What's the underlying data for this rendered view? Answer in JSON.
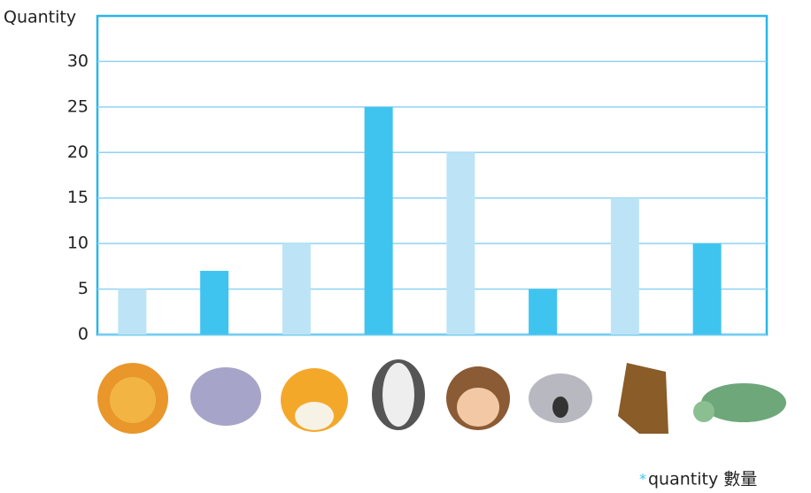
{
  "chart_data": {
    "type": "bar",
    "y_label": "Quantity",
    "categories": [
      null,
      null,
      null,
      null,
      null,
      null,
      null,
      null
    ],
    "series": [
      {
        "name": "quantity 數量",
        "values": [
          5,
          7,
          10,
          25,
          20,
          5,
          15,
          10
        ],
        "colors": [
          "#bde4f6",
          "#3fc4ef",
          "#bde4f6",
          "#3fc4ef",
          "#bde4f6",
          "#3fc4ef",
          "#bde4f6",
          "#3fc4ef"
        ]
      }
    ],
    "ylim": [
      0,
      35
    ],
    "yticks": [
      0,
      5,
      10,
      15,
      20,
      25,
      30
    ],
    "grid": true,
    "frame_color": "#29b6e8",
    "legend_position": "bottom right"
  }
}
